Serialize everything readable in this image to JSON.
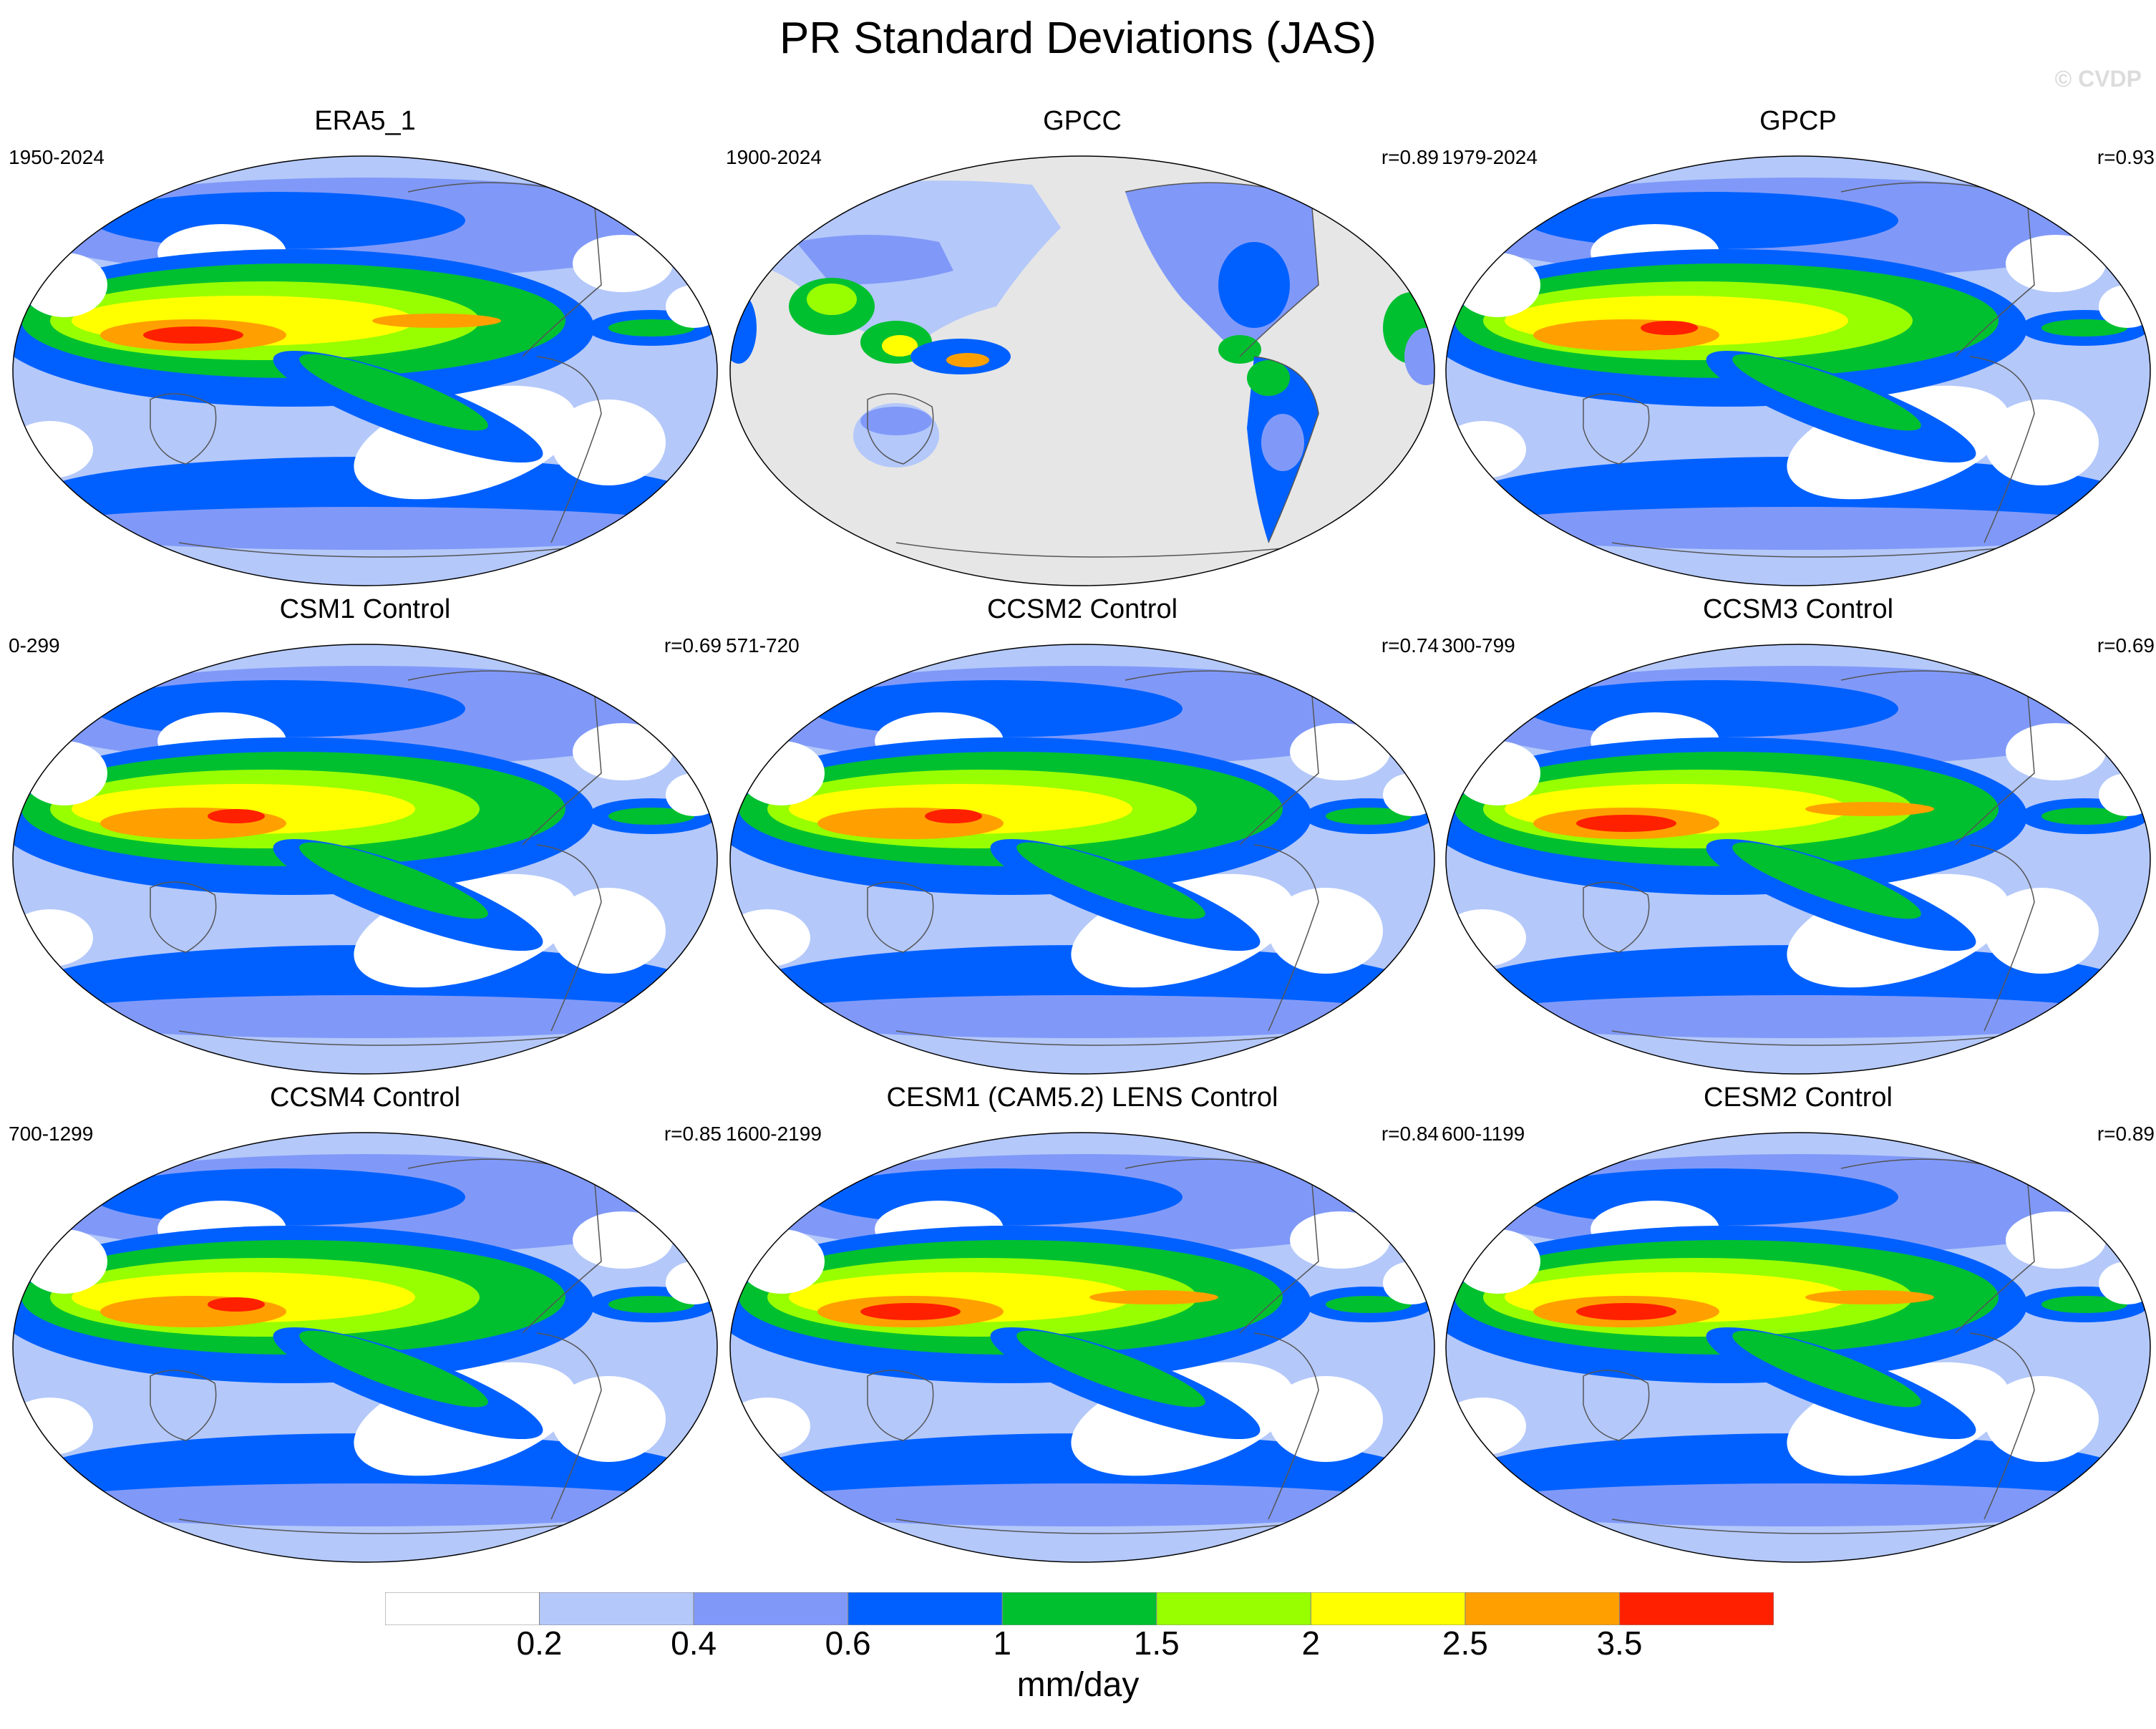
{
  "title": "PR Standard Deviations (JAS)",
  "watermark": "© CVDP",
  "panels": [
    {
      "title": "ERA5_1",
      "years": "1950-2024",
      "corr": "",
      "variant": "era5"
    },
    {
      "title": "GPCC",
      "years": "1900-2024",
      "corr": "r=0.89",
      "variant": "gpcc"
    },
    {
      "title": "GPCP",
      "years": "1979-2024",
      "corr": "r=0.93",
      "variant": "gpcp"
    },
    {
      "title": "CSM1 Control",
      "years": "0-299",
      "corr": "r=0.69",
      "variant": "csm1"
    },
    {
      "title": "CCSM2 Control",
      "years": "571-720",
      "corr": "r=0.74",
      "variant": "ccsm2"
    },
    {
      "title": "CCSM3 Control",
      "years": "300-799",
      "corr": "r=0.69",
      "variant": "ccsm3"
    },
    {
      "title": "CCSM4 Control",
      "years": "700-1299",
      "corr": "r=0.85",
      "variant": "ccsm4"
    },
    {
      "title": "CESM1 (CAM5.2) LENS Control",
      "years": "1600-2199",
      "corr": "r=0.84",
      "variant": "cesm1"
    },
    {
      "title": "CESM2 Control",
      "years": "600-1199",
      "corr": "r=0.89",
      "variant": "cesm2"
    }
  ],
  "colorbar": {
    "colors": [
      "#ffffff",
      "#b4c8fa",
      "#8099f8",
      "#0060ff",
      "#00c030",
      "#98ff00",
      "#ffff00",
      "#ffa000",
      "#ff2000"
    ],
    "labels": [
      "0.2",
      "0.4",
      "0.6",
      "1",
      "1.5",
      "2",
      "2.5",
      "3.5"
    ],
    "units": "mm/day"
  },
  "land_mask_color": "#e6e6e6"
}
